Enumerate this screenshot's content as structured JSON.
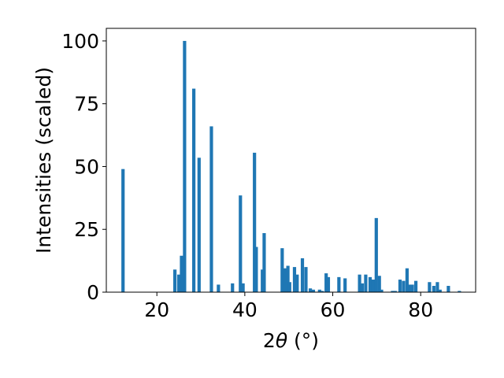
{
  "chart_data": {
    "type": "bar",
    "xlabel_prefix": "2",
    "xlabel_symbol": "θ",
    "xlabel_unit": " (°)",
    "ylabel": "Intensities (scaled)",
    "xlim": [
      8.5,
      92.5
    ],
    "ylim": [
      0,
      105
    ],
    "xticks": [
      20,
      40,
      60,
      80
    ],
    "yticks": [
      0,
      25,
      50,
      75,
      100
    ],
    "grid": false,
    "bar_color": "#1f77b4",
    "bar_width": 0.75,
    "x": [
      12.3,
      24.1,
      25.0,
      25.6,
      26.3,
      28.4,
      29.6,
      32.4,
      34.0,
      37.2,
      39.0,
      39.6,
      42.2,
      42.6,
      44.0,
      44.4,
      48.5,
      49.1,
      49.8,
      50.2,
      51.3,
      51.9,
      53.1,
      53.9,
      54.9,
      55.6,
      57.0,
      57.6,
      58.5,
      59.0,
      61.4,
      62.8,
      66.1,
      66.7,
      67.5,
      68.5,
      69.2,
      69.9,
      70.6,
      71.1,
      73.6,
      74.2,
      75.3,
      76.1,
      76.9,
      77.4,
      78.1,
      78.9,
      82.0,
      83.0,
      83.8,
      84.4,
      86.3,
      88.8
    ],
    "values": [
      49,
      9,
      7,
      14.5,
      100,
      81,
      53.5,
      66,
      3,
      3.5,
      38.5,
      3.5,
      55.5,
      18,
      9,
      23.5,
      17.5,
      9.5,
      10.5,
      4,
      10,
      7,
      13.5,
      10,
      1.5,
      1,
      1,
      0.5,
      7.5,
      6,
      6,
      5.5,
      7,
      3.5,
      7,
      6,
      5,
      29.5,
      6.5,
      1,
      0.5,
      0.5,
      5,
      4.5,
      9.5,
      3,
      3,
      4.5,
      4,
      2.5,
      4,
      1,
      2.5,
      0.5
    ]
  }
}
